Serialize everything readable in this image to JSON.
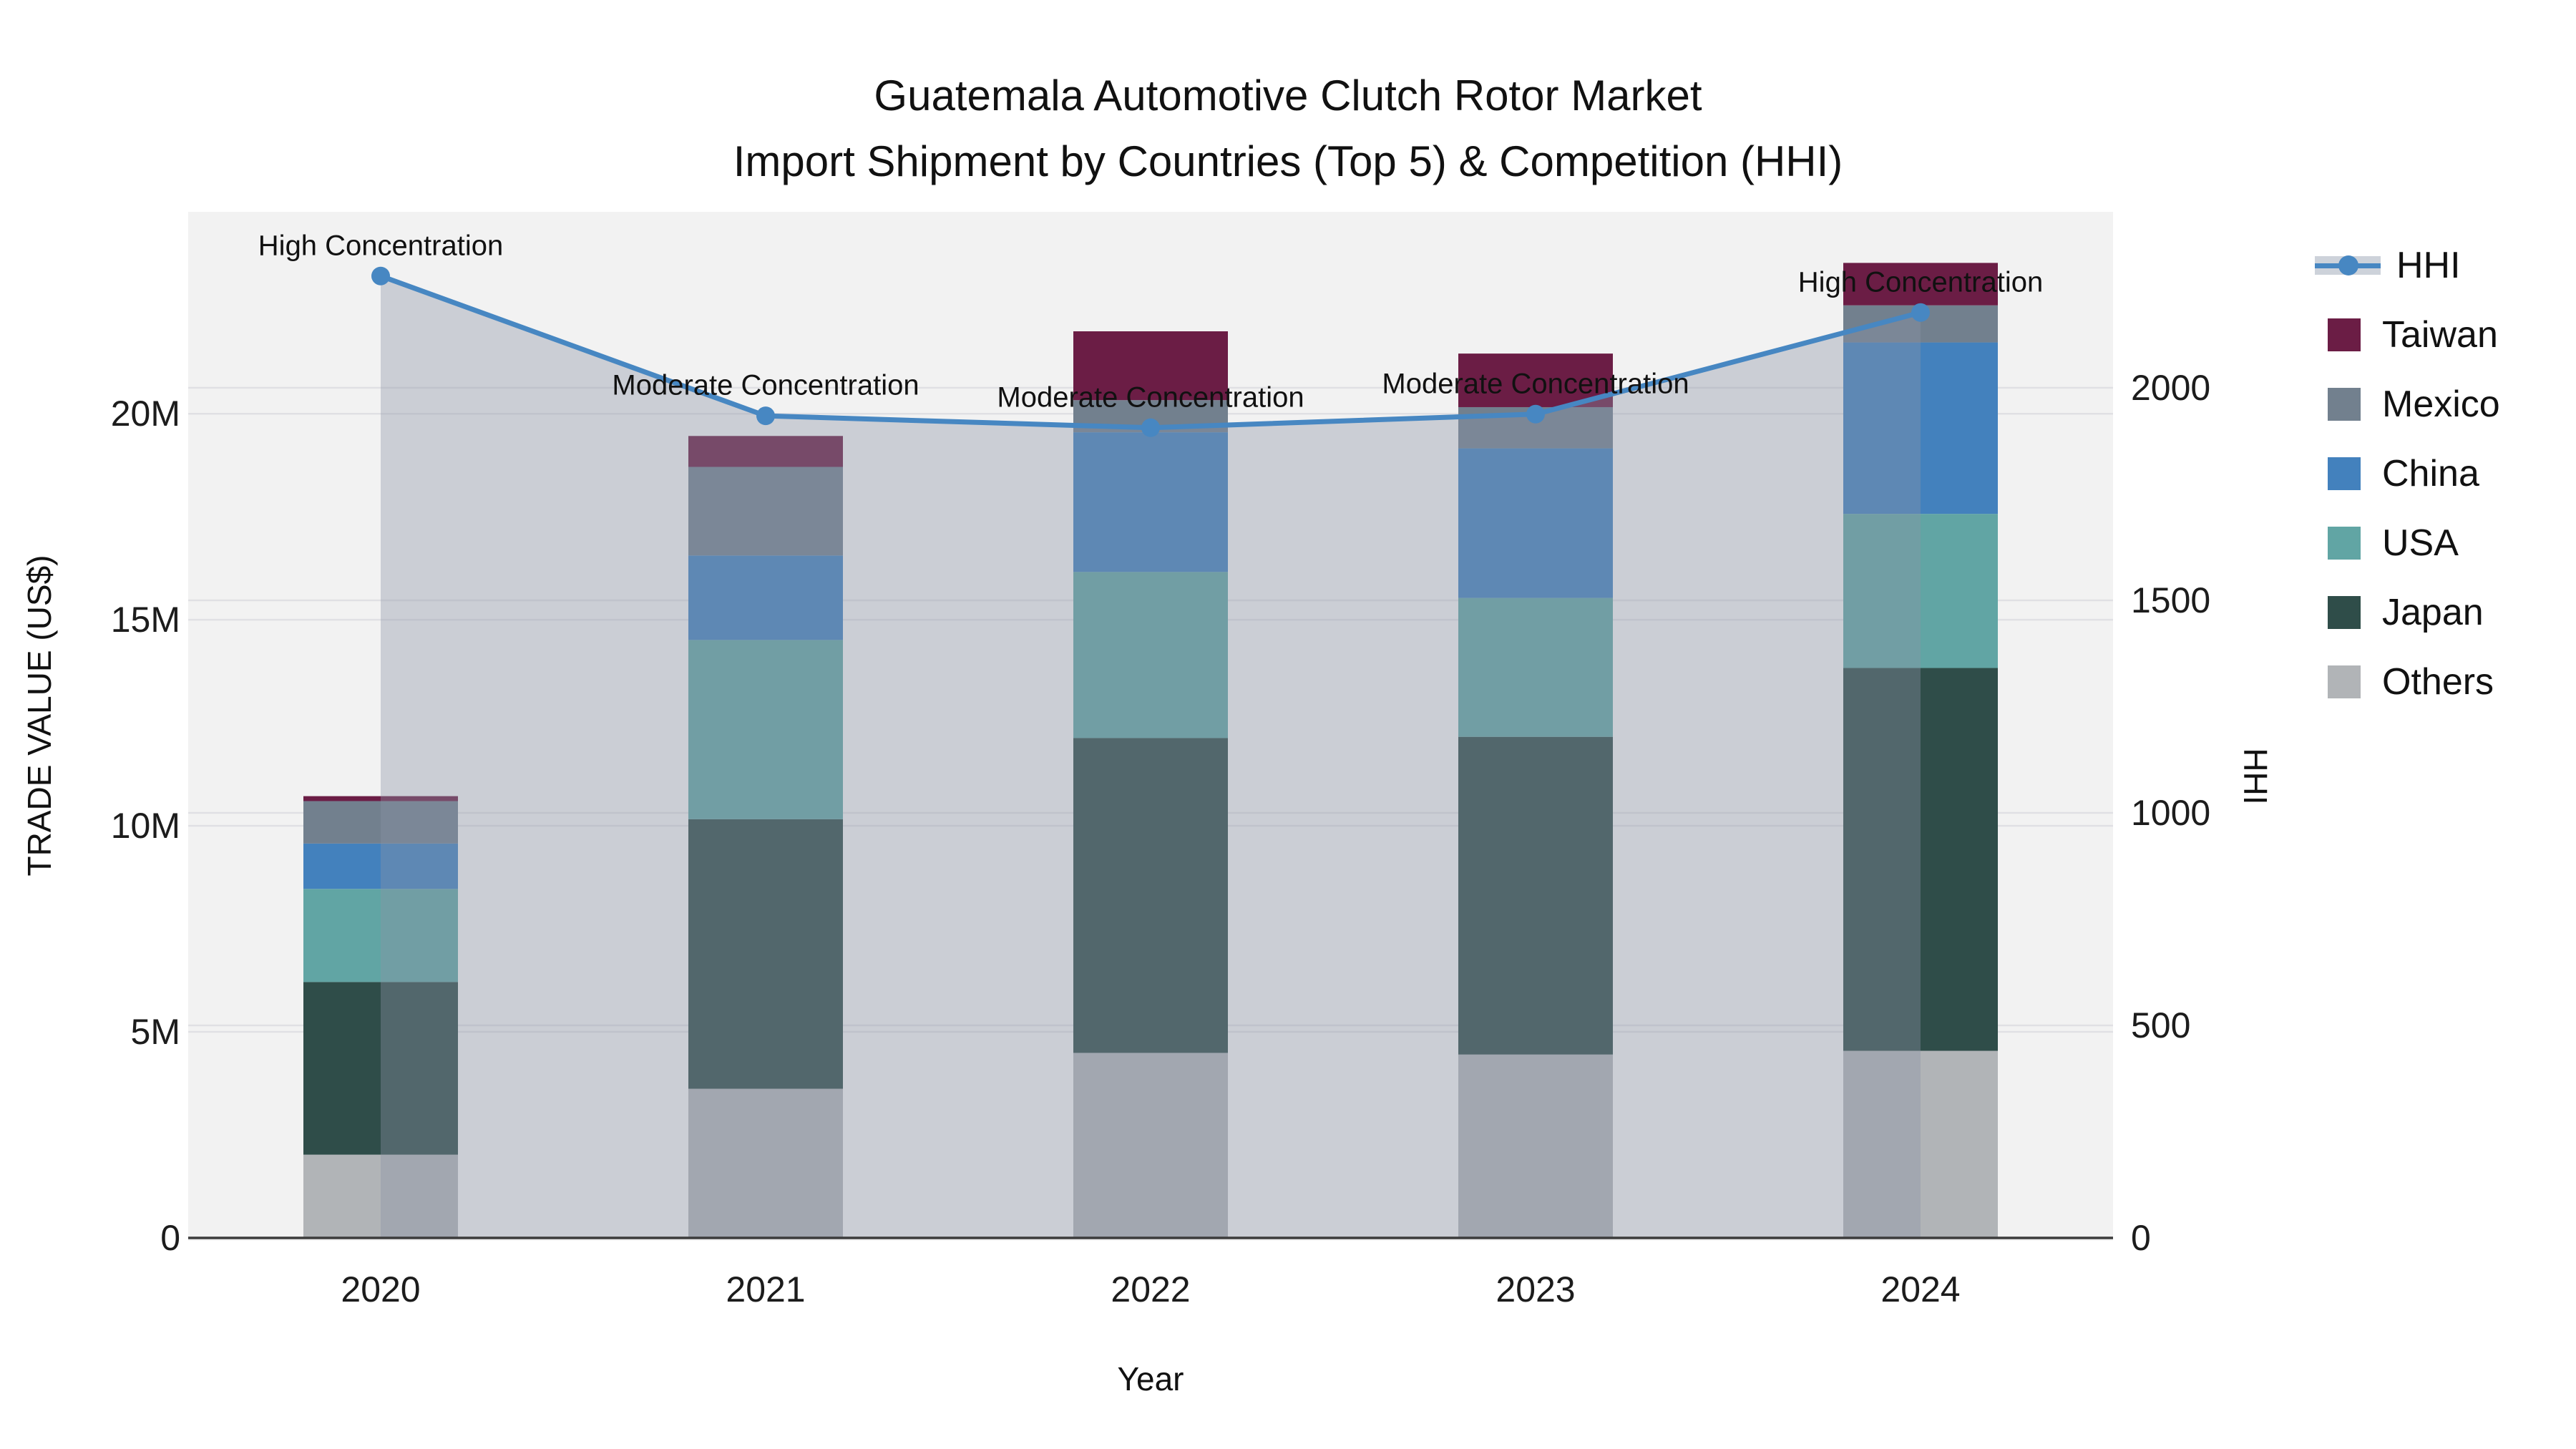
{
  "title": {
    "line1": "Guatemala Automotive Clutch Rotor Market",
    "line2": "Import Shipment by Countries (Top 5) & Competition (HHI)"
  },
  "chart_data": {
    "type": "combo: stacked bar (trade value by country) + line/area (HHI, right axis)",
    "categories": [
      "2020",
      "2021",
      "2022",
      "2023",
      "2024"
    ],
    "series": [
      {
        "name": "Taiwan",
        "type": "bar",
        "color": "#6B1D45",
        "values": [
          120000,
          750000,
          1670000,
          1300000,
          1030000
        ]
      },
      {
        "name": "Mexico",
        "type": "bar",
        "color": "#72808E",
        "values": [
          1030000,
          2150000,
          780000,
          1000000,
          900000
        ]
      },
      {
        "name": "China",
        "type": "bar",
        "color": "#4381BD",
        "values": [
          1100000,
          2050000,
          3390000,
          3630000,
          4160000
        ]
      },
      {
        "name": "USA",
        "type": "bar",
        "color": "#61A5A4",
        "values": [
          2260000,
          4350000,
          4030000,
          3370000,
          3740000
        ]
      },
      {
        "name": "Japan",
        "type": "bar",
        "color": "#2F4D49",
        "values": [
          4190000,
          6540000,
          7640000,
          7710000,
          9290000
        ]
      },
      {
        "name": "Others",
        "type": "bar",
        "color": "#B1B4B7",
        "values": [
          2020000,
          3620000,
          4490000,
          4450000,
          4540000
        ]
      }
    ],
    "stack_order_bottom_to_top": [
      "Others",
      "Japan",
      "USA",
      "China",
      "Mexico",
      "Taiwan"
    ],
    "bar_totals": [
      10720000,
      19460000,
      22000000,
      21460000,
      23660000
    ],
    "hhi": {
      "name": "HHI",
      "type": "line+area",
      "line_color": "#4787C2",
      "area_fill": "rgba(140,148,166,0.38)",
      "values": [
        2263,
        1934,
        1906,
        1938,
        2177
      ]
    },
    "annotations": [
      {
        "text": "High Concentration",
        "year": "2020"
      },
      {
        "text": "Moderate Concentration",
        "year": "2021"
      },
      {
        "text": "Moderate Concentration",
        "year": "2022"
      },
      {
        "text": "Moderate Concentration",
        "year": "2023"
      },
      {
        "text": "High Concentration",
        "year": "2024"
      }
    ],
    "axes": {
      "x": {
        "title": "Year"
      },
      "y_left": {
        "title": "TRADE VALUE (US$)",
        "tick_labels": [
          "0",
          "5M",
          "10M",
          "15M",
          "20M"
        ],
        "tick_values": [
          0,
          5000000,
          10000000,
          15000000,
          20000000
        ],
        "max": 24900000
      },
      "y_right": {
        "title": "HHI",
        "tick_labels": [
          "0",
          "500",
          "1000",
          "1500",
          "2000"
        ],
        "tick_values": [
          0,
          500,
          1000,
          1500,
          2000
        ],
        "max": 2414
      }
    },
    "grid": true,
    "legend_position": "right",
    "colors": {
      "plot_background": "#F2F2F2",
      "gridline": "#E0E0E4",
      "axis_line": "#3C3C3C",
      "legend_band": "#CDD2DA"
    }
  },
  "legend": {
    "items": [
      {
        "label": "HHI",
        "kind": "line",
        "color": "#4787C2"
      },
      {
        "label": "Taiwan",
        "kind": "swatch",
        "color": "#6B1D45"
      },
      {
        "label": "Mexico",
        "kind": "swatch",
        "color": "#72808E"
      },
      {
        "label": "China",
        "kind": "swatch",
        "color": "#4381BD"
      },
      {
        "label": "USA",
        "kind": "swatch",
        "color": "#61A5A4"
      },
      {
        "label": "Japan",
        "kind": "swatch",
        "color": "#2F4D49"
      },
      {
        "label": "Others",
        "kind": "swatch",
        "color": "#B1B4B7"
      }
    ]
  }
}
